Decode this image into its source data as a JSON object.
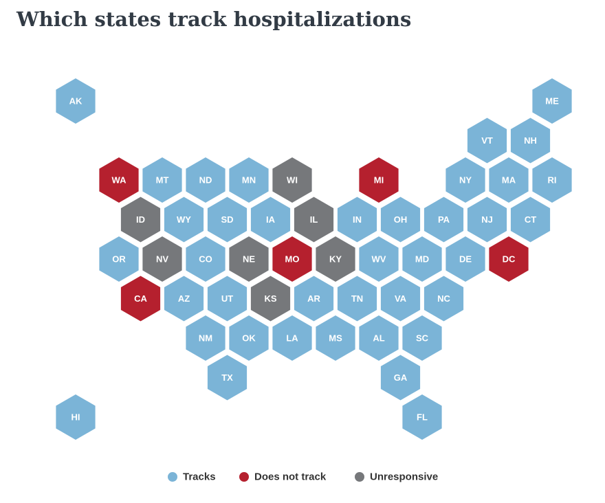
{
  "title": "Which states track hospitalizations",
  "legend": [
    {
      "label": "Tracks",
      "color": "#7bb4d7"
    },
    {
      "label": "Does not track",
      "color": "#b5202e"
    },
    {
      "label": "Unresponsive",
      "color": "#76787b"
    }
  ],
  "states": [
    {
      "label": "AK",
      "color": "#7bb4d7"
    },
    {
      "label": "ME",
      "color": "#7bb4d7"
    },
    {
      "label": "VT",
      "color": "#7bb4d7"
    },
    {
      "label": "NH",
      "color": "#7bb4d7"
    },
    {
      "label": "WA",
      "color": "#b5202e"
    },
    {
      "label": "MT",
      "color": "#7bb4d7"
    },
    {
      "label": "ND",
      "color": "#7bb4d7"
    },
    {
      "label": "MN",
      "color": "#7bb4d7"
    },
    {
      "label": "WI",
      "color": "#76787b"
    },
    {
      "label": "MI",
      "color": "#b5202e"
    },
    {
      "label": "NY",
      "color": "#7bb4d7"
    },
    {
      "label": "MA",
      "color": "#7bb4d7"
    },
    {
      "label": "RI",
      "color": "#7bb4d7"
    },
    {
      "label": "ID",
      "color": "#76787b"
    },
    {
      "label": "WY",
      "color": "#7bb4d7"
    },
    {
      "label": "SD",
      "color": "#7bb4d7"
    },
    {
      "label": "IA",
      "color": "#7bb4d7"
    },
    {
      "label": "IL",
      "color": "#76787b"
    },
    {
      "label": "IN",
      "color": "#7bb4d7"
    },
    {
      "label": "OH",
      "color": "#7bb4d7"
    },
    {
      "label": "PA",
      "color": "#7bb4d7"
    },
    {
      "label": "NJ",
      "color": "#7bb4d7"
    },
    {
      "label": "CT",
      "color": "#7bb4d7"
    },
    {
      "label": "OR",
      "color": "#7bb4d7"
    },
    {
      "label": "NV",
      "color": "#76787b"
    },
    {
      "label": "CO",
      "color": "#7bb4d7"
    },
    {
      "label": "NE",
      "color": "#76787b"
    },
    {
      "label": "MO",
      "color": "#b5202e"
    },
    {
      "label": "KY",
      "color": "#76787b"
    },
    {
      "label": "WV",
      "color": "#7bb4d7"
    },
    {
      "label": "MD",
      "color": "#7bb4d7"
    },
    {
      "label": "DE",
      "color": "#7bb4d7"
    },
    {
      "label": "DC",
      "color": "#b5202e"
    },
    {
      "label": "CA",
      "color": "#b5202e"
    },
    {
      "label": "AZ",
      "color": "#7bb4d7"
    },
    {
      "label": "UT",
      "color": "#7bb4d7"
    },
    {
      "label": "KS",
      "color": "#76787b"
    },
    {
      "label": "AR",
      "color": "#7bb4d7"
    },
    {
      "label": "TN",
      "color": "#7bb4d7"
    },
    {
      "label": "VA",
      "color": "#7bb4d7"
    },
    {
      "label": "NC",
      "color": "#7bb4d7"
    },
    {
      "label": "NM",
      "color": "#7bb4d7"
    },
    {
      "label": "OK",
      "color": "#7bb4d7"
    },
    {
      "label": "LA",
      "color": "#7bb4d7"
    },
    {
      "label": "MS",
      "color": "#7bb4d7"
    },
    {
      "label": "AL",
      "color": "#7bb4d7"
    },
    {
      "label": "SC",
      "color": "#7bb4d7"
    },
    {
      "label": "TX",
      "color": "#7bb4d7"
    },
    {
      "label": "GA",
      "color": "#7bb4d7"
    },
    {
      "label": "HI",
      "color": "#7bb4d7"
    },
    {
      "label": "FL",
      "color": "#7bb4d7"
    }
  ]
}
